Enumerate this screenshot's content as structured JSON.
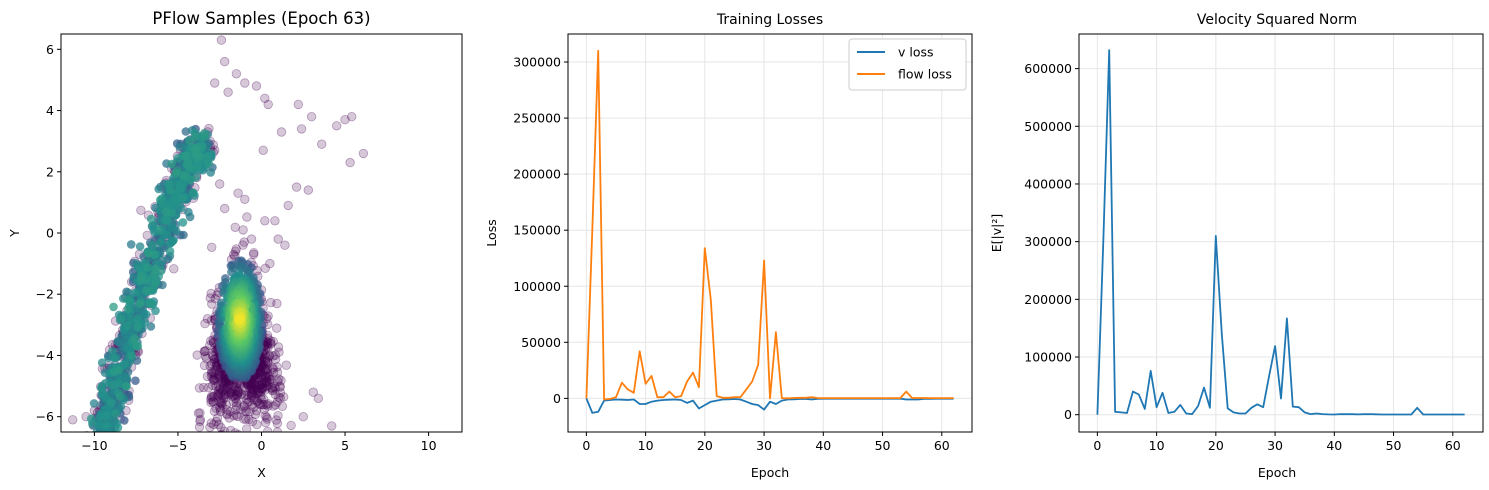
{
  "chart_data": [
    {
      "type": "scatter",
      "title": "PFlow Samples (Epoch 63)",
      "xlabel": "X",
      "ylabel": "Y",
      "xlim": [
        -12,
        12
      ],
      "ylim": [
        -6.5,
        6.5
      ],
      "xticks": [
        -10,
        -5,
        0,
        5,
        10
      ],
      "yticks": [
        -6,
        -4,
        -2,
        0,
        2,
        4,
        6
      ],
      "grid": false,
      "colormap": "viridis",
      "point_color": "#440154",
      "dense_color": "#fde725",
      "clusters": [
        {
          "name": "",
          "shape": "curved-arc",
          "path": [
            [
              -9.5,
              -6.5
            ],
            [
              -8.5,
              -4.5
            ],
            [
              -7.5,
              -2.5
            ],
            [
              -6.3,
              -0.5
            ],
            [
              -5.2,
              1.2
            ],
            [
              -4.3,
              2.3
            ],
            [
              -3.5,
              2.9
            ]
          ],
          "spread": 0.45,
          "count": 1100
        },
        {
          "name": "",
          "shape": "blob",
          "center": [
            -1.2,
            -3.2
          ],
          "sd": [
            0.9,
            1.1
          ],
          "count": 1500,
          "peak": [
            -1.3,
            -2.8
          ]
        }
      ],
      "outliers": [
        [
          -2.4,
          6.3
        ],
        [
          -2.2,
          5.6
        ],
        [
          -1.5,
          5.2
        ],
        [
          -2.8,
          4.9
        ],
        [
          -2.0,
          4.6
        ],
        [
          -1.0,
          4.9
        ],
        [
          -0.3,
          4.8
        ],
        [
          0.2,
          4.4
        ],
        [
          0.4,
          4.2
        ],
        [
          2.2,
          4.2
        ],
        [
          3.0,
          3.8
        ],
        [
          4.5,
          3.5
        ],
        [
          5.0,
          3.7
        ],
        [
          5.4,
          3.8
        ],
        [
          6.1,
          2.6
        ],
        [
          5.3,
          2.3
        ],
        [
          3.6,
          2.9
        ],
        [
          2.4,
          3.4
        ],
        [
          1.2,
          3.3
        ],
        [
          0.1,
          2.7
        ],
        [
          2.1,
          1.5
        ],
        [
          2.8,
          1.4
        ],
        [
          1.6,
          0.9
        ],
        [
          -1.4,
          1.3
        ],
        [
          -1.0,
          1.1
        ],
        [
          0.2,
          0.4
        ],
        [
          0.8,
          0.4
        ],
        [
          1.0,
          -0.2
        ],
        [
          1.4,
          -0.4
        ],
        [
          0.5,
          -1.0
        ],
        [
          -0.6,
          -0.2
        ],
        [
          -1.1,
          0.1
        ],
        [
          -2.2,
          0.8
        ],
        [
          -2.5,
          1.6
        ],
        [
          3.1,
          -5.2
        ],
        [
          3.4,
          -5.4
        ],
        [
          2.5,
          -6.0
        ],
        [
          4.2,
          -6.3
        ],
        [
          -11.3,
          -6.1
        ],
        [
          -10.5,
          -6.0
        ],
        [
          -10.0,
          -5.8
        ],
        [
          -9.6,
          -5.3
        ],
        [
          -9.0,
          -4.0
        ],
        [
          -7.9,
          -3.9
        ]
      ]
    },
    {
      "type": "line",
      "title": "Training Losses",
      "xlabel": "Epoch",
      "ylabel": "Loss",
      "xlim": [
        -3.1,
        65.1
      ],
      "ylim": [
        -30000,
        325000
      ],
      "xticks": [
        0,
        10,
        20,
        30,
        40,
        50,
        60
      ],
      "yticks": [
        0,
        50000,
        100000,
        150000,
        200000,
        250000,
        300000
      ],
      "grid": true,
      "legend": "top-right",
      "x": [
        0,
        1,
        2,
        3,
        4,
        5,
        6,
        7,
        8,
        9,
        10,
        11,
        12,
        13,
        14,
        15,
        16,
        17,
        18,
        19,
        20,
        21,
        22,
        23,
        24,
        25,
        26,
        27,
        28,
        29,
        30,
        31,
        32,
        33,
        34,
        35,
        36,
        37,
        38,
        39,
        40,
        41,
        42,
        43,
        44,
        45,
        46,
        47,
        48,
        49,
        50,
        51,
        52,
        53,
        54,
        55,
        56,
        57,
        58,
        59,
        60,
        61,
        62
      ],
      "series": [
        {
          "name": "v loss",
          "color": "#1f77b4",
          "values": [
            0,
            -13000,
            -12000,
            -2000,
            -1500,
            -1000,
            -1200,
            -1500,
            -1000,
            -5000,
            -5000,
            -3000,
            -2000,
            -1500,
            -1200,
            -1000,
            -1500,
            -4000,
            -2000,
            -9000,
            -6000,
            -3000,
            -2000,
            -1000,
            -800,
            -600,
            -1000,
            -3000,
            -5000,
            -6000,
            -10000,
            -3000,
            -5000,
            -2000,
            -1000,
            -800,
            -600,
            -500,
            -1000,
            -500,
            -300,
            -300,
            -300,
            -300,
            -300,
            -300,
            -300,
            -300,
            -300,
            -300,
            -300,
            -300,
            -300,
            -300,
            -1000,
            -1000,
            -1000,
            -500,
            -400,
            -300,
            -300,
            -300,
            -300
          ]
        },
        {
          "name": "flow loss",
          "color": "#ff7f0e",
          "values": [
            0,
            150000,
            310000,
            -1000,
            -500,
            1000,
            14000,
            8000,
            5000,
            42000,
            13000,
            20000,
            1000,
            1000,
            6000,
            1000,
            2000,
            15000,
            23000,
            10000,
            134000,
            88000,
            2000,
            500,
            500,
            1000,
            1000,
            8000,
            15000,
            30000,
            123000,
            0,
            59000,
            200,
            100,
            300,
            500,
            500,
            1000,
            300,
            200,
            200,
            200,
            200,
            200,
            200,
            200,
            200,
            200,
            200,
            200,
            200,
            200,
            200,
            6000,
            300,
            300,
            300,
            200,
            200,
            200,
            200,
            200
          ]
        }
      ]
    },
    {
      "type": "line",
      "title": "Velocity Squared Norm",
      "xlabel": "Epoch",
      "ylabel": "E[|v|²]",
      "xlim": [
        -3.1,
        65.1
      ],
      "ylim": [
        -30000,
        660000
      ],
      "xticks": [
        0,
        10,
        20,
        30,
        40,
        50,
        60
      ],
      "yticks": [
        0,
        100000,
        200000,
        300000,
        400000,
        500000,
        600000
      ],
      "grid": true,
      "x": [
        0,
        1,
        2,
        3,
        4,
        5,
        6,
        7,
        8,
        9,
        10,
        11,
        12,
        13,
        14,
        15,
        16,
        17,
        18,
        19,
        20,
        21,
        22,
        23,
        24,
        25,
        26,
        27,
        28,
        29,
        30,
        31,
        32,
        33,
        34,
        35,
        36,
        37,
        38,
        39,
        40,
        41,
        42,
        43,
        44,
        45,
        46,
        47,
        48,
        49,
        50,
        51,
        52,
        53,
        54,
        55,
        56,
        57,
        58,
        59,
        60,
        61,
        62
      ],
      "series": [
        {
          "name": "",
          "color": "#1f77b4",
          "values": [
            0,
            300000,
            632000,
            5000,
            4000,
            3000,
            40000,
            35000,
            10000,
            76000,
            13000,
            38000,
            3000,
            5000,
            17000,
            2000,
            1000,
            15000,
            47000,
            12000,
            310000,
            140000,
            11000,
            4000,
            2000,
            2000,
            12000,
            18000,
            13000,
            68000,
            119000,
            28000,
            167000,
            14000,
            13000,
            4000,
            1000,
            2000,
            1000,
            500,
            300,
            1000,
            800,
            800,
            500,
            800,
            1000,
            600,
            300,
            300,
            300,
            300,
            300,
            300,
            12000,
            400,
            400,
            400,
            300,
            300,
            300,
            300,
            300
          ]
        }
      ]
    }
  ]
}
